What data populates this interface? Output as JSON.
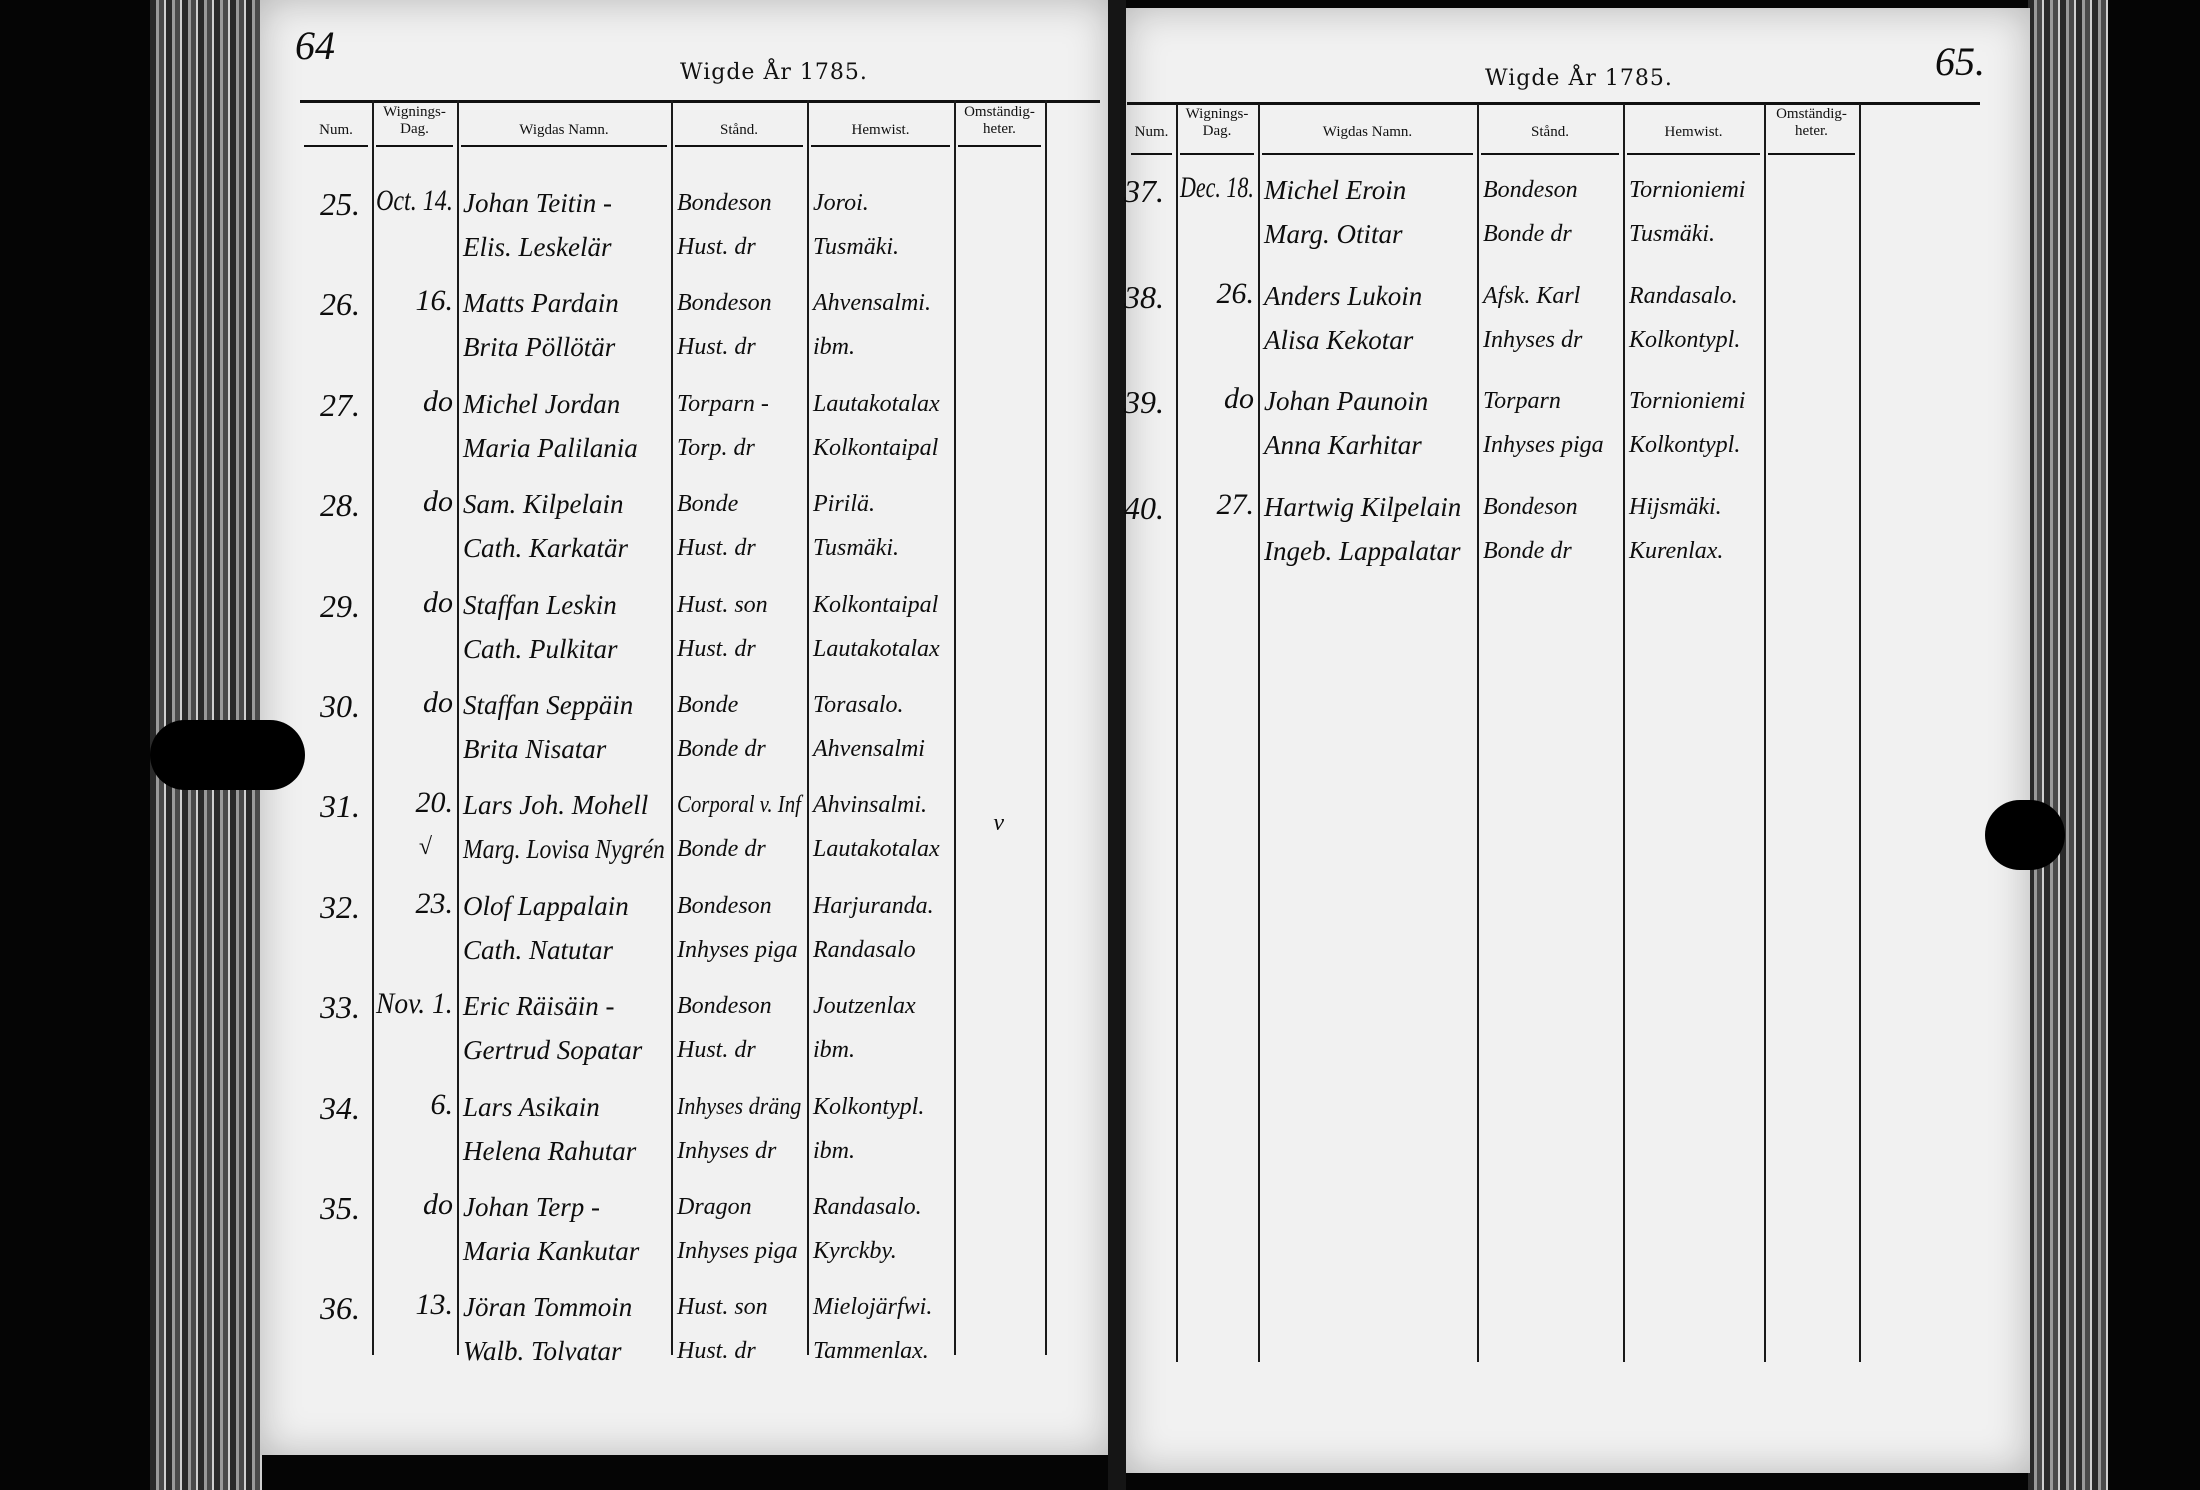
{
  "colors": {
    "paper": "#f1f1f1",
    "ink": "#111111",
    "background": "#050505"
  },
  "left_page": {
    "page_number": "64",
    "title": "Wigde År 1785.",
    "headers": [
      "Num.",
      "Wignings-\nDag.",
      "Wigdas Namn.",
      "Stånd.",
      "Hemwist.",
      "Omständig-\nheter."
    ],
    "entries": [
      {
        "num": "25.",
        "date": "Oct. 14.",
        "names": [
          "Johan Teitin -",
          "Elis. Leskelär"
        ],
        "stand": [
          "Bondeson",
          "Hust. dr"
        ],
        "hemwist": [
          "Joroi.",
          "Tusmäki."
        ]
      },
      {
        "num": "26.",
        "date": "16.",
        "names": [
          "Matts Pardain",
          "Brita Pöllötär"
        ],
        "stand": [
          "Bondeson",
          "Hust. dr"
        ],
        "hemwist": [
          "Ahvensalmi.",
          "ibm."
        ]
      },
      {
        "num": "27.",
        "date": "do",
        "names": [
          "Michel Jordan",
          "Maria Palilania"
        ],
        "stand": [
          "Torparn -",
          "Torp. dr"
        ],
        "hemwist": [
          "Lautakotalax",
          "Kolkontaipal"
        ]
      },
      {
        "num": "28.",
        "date": "do",
        "names": [
          "Sam. Kilpelain",
          "Cath. Karkatär"
        ],
        "stand": [
          "Bonde",
          "Hust. dr"
        ],
        "hemwist": [
          "Pirilä.",
          "Tusmäki."
        ]
      },
      {
        "num": "29.",
        "date": "do",
        "names": [
          "Staffan Leskin",
          "Cath. Pulkitar"
        ],
        "stand": [
          "Hust. son",
          "Hust. dr"
        ],
        "hemwist": [
          "Kolkontaipal",
          "Lautakotalax"
        ]
      },
      {
        "num": "30.",
        "date": "do",
        "names": [
          "Staffan Seppäin",
          "Brita Nisatar"
        ],
        "stand": [
          "Bonde",
          "Bonde dr"
        ],
        "hemwist": [
          "Torasalo.",
          "Ahvensalmi"
        ]
      },
      {
        "num": "31.",
        "date": "20.",
        "names": [
          "Lars Joh. Mohell",
          "Marg. Lovisa Nygrén"
        ],
        "stand": [
          "Corporal v. Inf",
          "Bonde dr"
        ],
        "hemwist": [
          "Ahvinsalmi.",
          "Lautakotalax"
        ],
        "marks": [
          "√",
          "v"
        ]
      },
      {
        "num": "32.",
        "date": "23.",
        "names": [
          "Olof Lappalain",
          "Cath. Natutar"
        ],
        "stand": [
          "Bondeson",
          "Inhyses piga"
        ],
        "hemwist": [
          "Harjuranda.",
          "Randasalo"
        ]
      },
      {
        "num": "33.",
        "date": "Nov. 1.",
        "names": [
          "Eric Räisäin -",
          "Gertrud Sopatar"
        ],
        "stand": [
          "Bondeson",
          "Hust. dr"
        ],
        "hemwist": [
          "Joutzenlax",
          "ibm."
        ]
      },
      {
        "num": "34.",
        "date": "6.",
        "names": [
          "Lars Asikain",
          "Helena Rahutar"
        ],
        "stand": [
          "Inhyses dräng",
          "Inhyses dr"
        ],
        "hemwist": [
          "Kolkontypl.",
          "ibm."
        ]
      },
      {
        "num": "35.",
        "date": "do",
        "names": [
          "Johan Terp -",
          "Maria Kankutar"
        ],
        "stand": [
          "Dragon",
          "Inhyses piga"
        ],
        "hemwist": [
          "Randasalo.",
          "Kyrckby."
        ]
      },
      {
        "num": "36.",
        "date": "13.",
        "names": [
          "Jöran Tommoin",
          "Walb. Tolvatar"
        ],
        "stand": [
          "Hust. son",
          "Hust. dr"
        ],
        "hemwist": [
          "Mielojärfwi.",
          "Tammenlax."
        ]
      }
    ]
  },
  "right_page": {
    "page_number": "65.",
    "title": "Wigde År 1785.",
    "headers": [
      "Num.",
      "Wignings-\nDag.",
      "Wigdas Namn.",
      "Stånd.",
      "Hemwist.",
      "Omständig-\nheter."
    ],
    "entries": [
      {
        "num": "37.",
        "date": "Dec. 18.",
        "names": [
          "Michel Eroin",
          "Marg. Otitar"
        ],
        "stand": [
          "Bondeson",
          "Bonde dr"
        ],
        "hemwist": [
          "Tornioniemi",
          "Tusmäki."
        ]
      },
      {
        "num": "38.",
        "date": "26.",
        "names": [
          "Anders Lukoin",
          "Alisa Kekotar"
        ],
        "stand": [
          "Afsk. Karl",
          "Inhyses dr"
        ],
        "hemwist": [
          "Randasalo.",
          "Kolkontypl."
        ]
      },
      {
        "num": "39.",
        "date": "do",
        "names": [
          "Johan Paunoin",
          "Anna Karhitar"
        ],
        "stand": [
          "Torparn",
          "Inhyses piga"
        ],
        "hemwist": [
          "Tornioniemi",
          "Kolkontypl."
        ]
      },
      {
        "num": "40.",
        "date": "27.",
        "names": [
          "Hartwig Kilpelain",
          "Ingeb. Lappalatar"
        ],
        "stand": [
          "Bondeson",
          "Bonde dr"
        ],
        "hemwist": [
          "Hijsmäki.",
          "Kurenlax."
        ]
      }
    ]
  }
}
